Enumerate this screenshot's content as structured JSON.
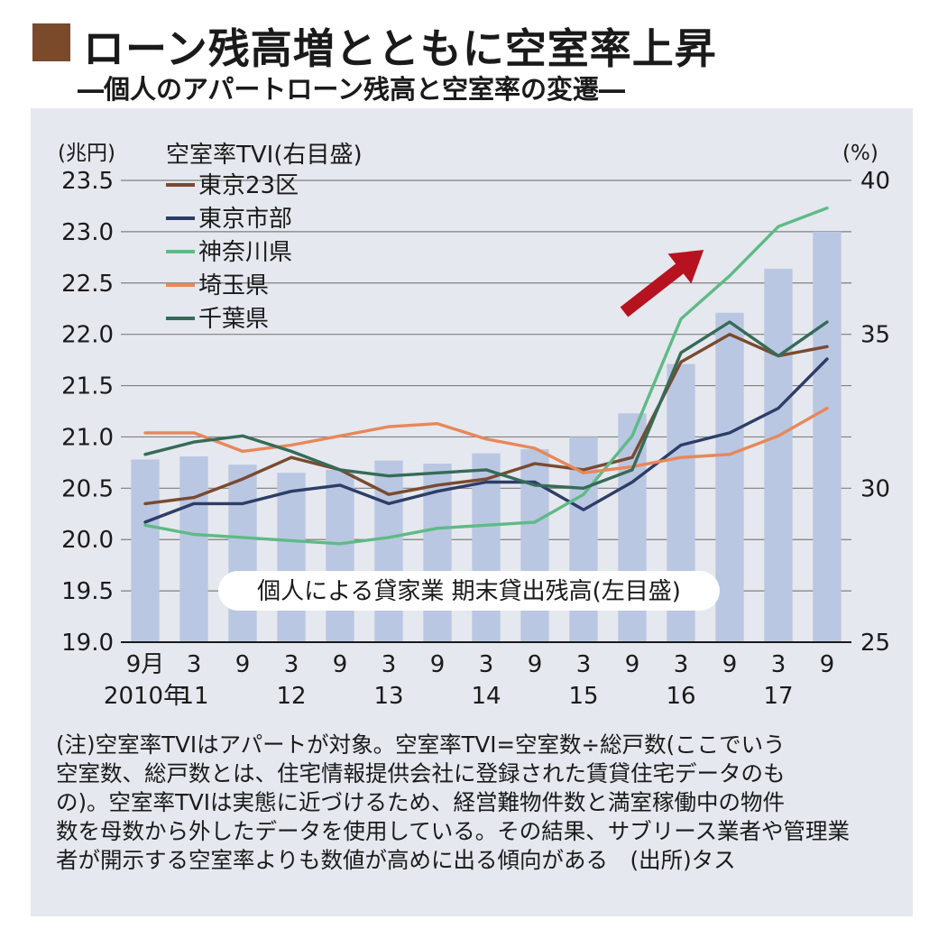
{
  "header": {
    "title": "ローン残高増とともに空室率上昇",
    "subtitle": "―個人のアパートローン残高と空室率の変遷―",
    "accent_color": "#7a4a2a"
  },
  "colors": {
    "panel_bg": "#e5e8ee",
    "bar": "#b9c7e3",
    "grid": "#7f7f7f",
    "arrow": "#b7121f"
  },
  "chart_data": {
    "type": "bar+line",
    "left_axis": {
      "unit": "(兆円)",
      "ylim": [
        19.0,
        23.5
      ],
      "ticks": [
        "19.0",
        "19.5",
        "20.0",
        "20.5",
        "21.0",
        "21.5",
        "22.0",
        "22.5",
        "23.0",
        "23.5"
      ]
    },
    "right_axis": {
      "unit": "(%)",
      "ylim": [
        25,
        40
      ],
      "ticks": [
        "25",
        "30",
        "35",
        "40"
      ]
    },
    "categories": [
      "2010-09",
      "2011-03",
      "2011-09",
      "2012-03",
      "2012-09",
      "2013-03",
      "2013-09",
      "2014-03",
      "2014-09",
      "2015-03",
      "2015-09",
      "2016-03",
      "2016-09",
      "2017-03",
      "2017-09"
    ],
    "x_tick_months": [
      "9月",
      "3",
      "9",
      "3",
      "9",
      "3",
      "9",
      "3",
      "9",
      "3",
      "9",
      "3",
      "9",
      "3",
      "9"
    ],
    "x_tick_years": [
      {
        "label": "2010年",
        "index": 0
      },
      {
        "label": "11",
        "index": 1
      },
      {
        "label": "12",
        "index": 3
      },
      {
        "label": "13",
        "index": 5
      },
      {
        "label": "14",
        "index": 7
      },
      {
        "label": "15",
        "index": 9
      },
      {
        "label": "16",
        "index": 11
      },
      {
        "label": "17",
        "index": 13
      }
    ],
    "bars": {
      "name": "個人による貸家業 期末貸出残高(左目盛)",
      "values": [
        20.78,
        20.81,
        20.73,
        20.65,
        20.68,
        20.77,
        20.74,
        20.84,
        20.88,
        21.0,
        21.23,
        21.71,
        22.21,
        22.64,
        23.0
      ]
    },
    "legend_title": "空室率TVI(右目盛)",
    "series": [
      {
        "name": "東京23区",
        "color": "#7a4a2f",
        "values": [
          29.5,
          29.7,
          30.3,
          31.0,
          30.6,
          29.8,
          30.1,
          30.3,
          30.8,
          30.6,
          31.0,
          34.1,
          35.0,
          34.3,
          34.6
        ]
      },
      {
        "name": "東京市部",
        "color": "#2e3d67",
        "values": [
          28.9,
          29.5,
          29.5,
          29.9,
          30.1,
          29.5,
          29.9,
          30.2,
          30.2,
          29.3,
          30.2,
          31.4,
          31.8,
          32.6,
          34.2
        ]
      },
      {
        "name": "神奈川県",
        "color": "#5fba86",
        "values": [
          28.8,
          28.5,
          28.4,
          28.3,
          28.2,
          28.4,
          28.7,
          28.8,
          28.9,
          29.8,
          31.7,
          35.5,
          36.9,
          38.5,
          39.1
        ]
      },
      {
        "name": "埼玉県",
        "color": "#e8875a",
        "values": [
          31.8,
          31.8,
          31.2,
          31.4,
          31.7,
          32.0,
          32.1,
          31.6,
          31.3,
          30.5,
          30.7,
          31.0,
          31.1,
          31.7,
          32.6
        ]
      },
      {
        "name": "千葉県",
        "color": "#356b57",
        "values": [
          31.1,
          31.5,
          31.7,
          31.2,
          30.6,
          30.4,
          30.5,
          30.6,
          30.1,
          30.0,
          30.6,
          34.4,
          35.4,
          34.3,
          35.4
        ]
      }
    ]
  },
  "note_lines": [
    "(注)空室率TVIはアパートが対象。空室率TVI=空室数÷総戸数(ここでいう",
    "空室数、総戸数とは、住宅情報提供会社に登録された賃貸住宅データのも",
    "の)。空室率TVIは実態に近づけるため、経営難物件数と満室稼働中の物件",
    "数を母数から外したデータを使用している。その結果、サブリース業者や管理業",
    "者が開示する空室率よりも数値が高めに出る傾向がある　(出所)タス"
  ]
}
